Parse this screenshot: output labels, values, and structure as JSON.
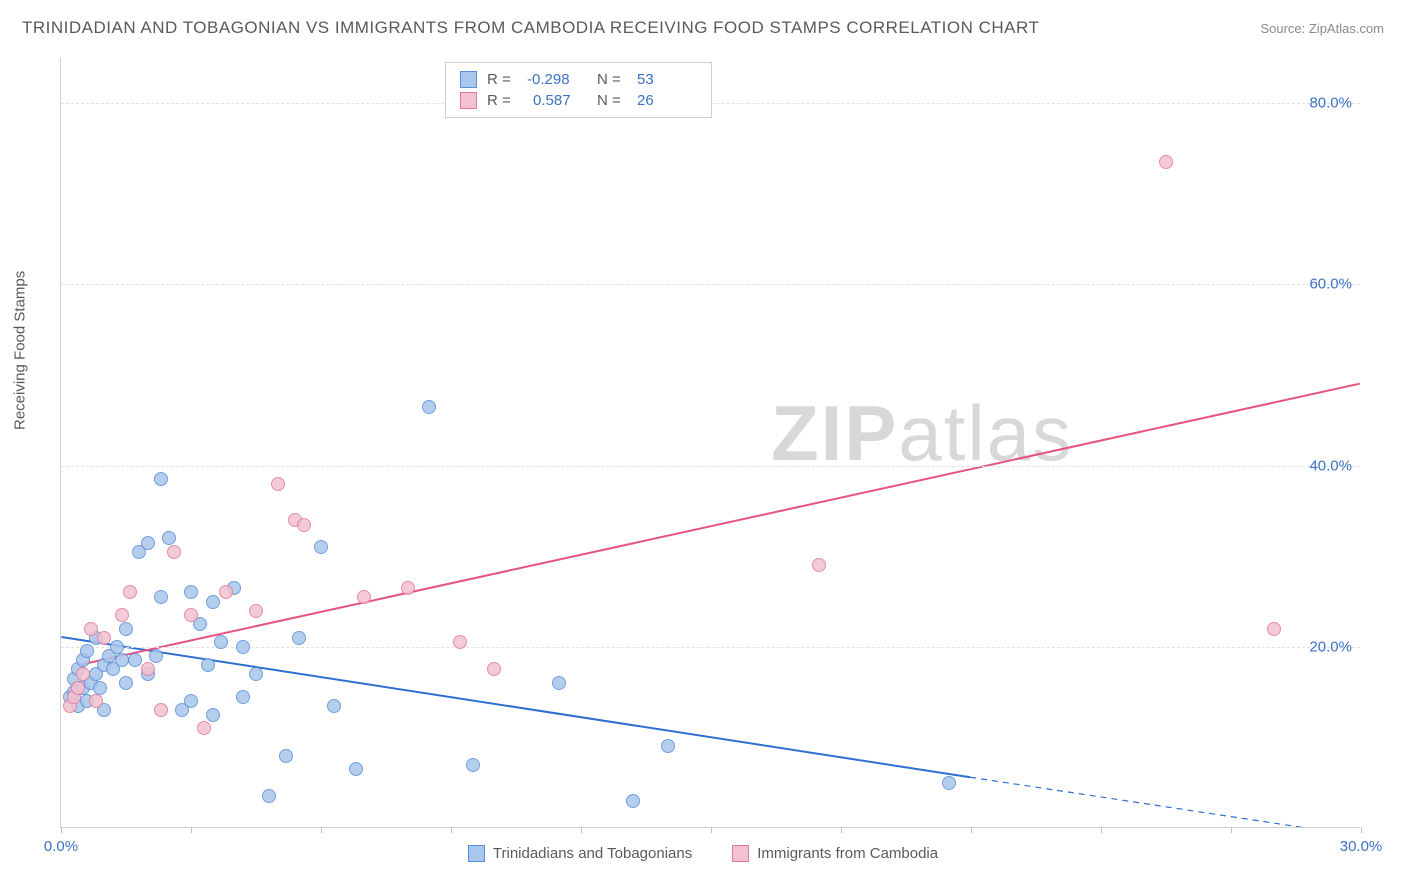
{
  "title": "TRINIDADIAN AND TOBAGONIAN VS IMMIGRANTS FROM CAMBODIA RECEIVING FOOD STAMPS CORRELATION CHART",
  "source_label": "Source: ZipAtlas.com",
  "ylabel": "Receiving Food Stamps",
  "watermark_bold": "ZIP",
  "watermark_rest": "atlas",
  "chart": {
    "type": "scatter",
    "xlim": [
      0,
      30
    ],
    "ylim": [
      0,
      85
    ],
    "x_ticks": [
      0,
      3,
      6,
      9,
      12,
      15,
      18,
      21,
      24,
      27,
      30
    ],
    "x_tick_labels": {
      "0": "0.0%",
      "30": "30.0%"
    },
    "y_gridlines": [
      20,
      40,
      60,
      80
    ],
    "y_tick_labels": {
      "20": "20.0%",
      "40": "40.0%",
      "60": "60.0%",
      "80": "80.0%"
    },
    "background_color": "#ffffff",
    "grid_color": "#e2e2e2",
    "axis_color": "#d0d0d0",
    "tick_label_color": "#3b72c4",
    "tick_label_fontsize": 15,
    "point_radius": 7,
    "point_border_width": 1.2,
    "point_fill_opacity": 0.35,
    "series": [
      {
        "name": "Trinidadians and Tobagonians",
        "color_fill": "#a9c6ec",
        "color_border": "#5b8fd6",
        "trend_color": "#2f6fd0",
        "trend_width": 2,
        "R": "-0.298",
        "N": "53",
        "trend": {
          "x1": 0,
          "y1": 21.0,
          "x2": 21.0,
          "y2": 5.5,
          "dash_x2": 30,
          "dash_y2": -1.0
        },
        "points": [
          [
            0.2,
            14.5
          ],
          [
            0.3,
            15.0
          ],
          [
            0.3,
            16.5
          ],
          [
            0.4,
            13.5
          ],
          [
            0.4,
            17.5
          ],
          [
            0.5,
            15.5
          ],
          [
            0.5,
            18.5
          ],
          [
            0.6,
            14.0
          ],
          [
            0.6,
            19.5
          ],
          [
            0.7,
            16.0
          ],
          [
            0.8,
            17.0
          ],
          [
            0.8,
            21.0
          ],
          [
            0.9,
            15.5
          ],
          [
            1.0,
            18.0
          ],
          [
            1.0,
            13.0
          ],
          [
            1.1,
            19.0
          ],
          [
            1.2,
            17.5
          ],
          [
            1.3,
            20.0
          ],
          [
            1.4,
            18.5
          ],
          [
            1.5,
            16.0
          ],
          [
            1.5,
            22.0
          ],
          [
            1.7,
            18.5
          ],
          [
            1.8,
            30.5
          ],
          [
            2.0,
            17.0
          ],
          [
            2.0,
            31.5
          ],
          [
            2.2,
            19.0
          ],
          [
            2.3,
            25.5
          ],
          [
            2.5,
            32.0
          ],
          [
            2.3,
            38.5
          ],
          [
            2.8,
            13.0
          ],
          [
            3.0,
            26.0
          ],
          [
            3.0,
            14.0
          ],
          [
            3.2,
            22.5
          ],
          [
            3.4,
            18.0
          ],
          [
            3.5,
            25.0
          ],
          [
            3.5,
            12.5
          ],
          [
            3.7,
            20.5
          ],
          [
            4.0,
            26.5
          ],
          [
            4.2,
            14.5
          ],
          [
            4.2,
            20.0
          ],
          [
            4.5,
            17.0
          ],
          [
            4.8,
            3.5
          ],
          [
            5.2,
            8.0
          ],
          [
            5.5,
            21.0
          ],
          [
            6.0,
            31.0
          ],
          [
            6.3,
            13.5
          ],
          [
            6.8,
            6.5
          ],
          [
            8.5,
            46.5
          ],
          [
            9.5,
            7.0
          ],
          [
            11.5,
            16.0
          ],
          [
            13.2,
            3.0
          ],
          [
            14.0,
            9.0
          ],
          [
            20.5,
            5.0
          ]
        ]
      },
      {
        "name": "Immigrants from Cambodia",
        "color_fill": "#f3c1cf",
        "color_border": "#e07a9a",
        "trend_color": "#e5537e",
        "trend_width": 2,
        "R": "0.587",
        "N": "26",
        "trend": {
          "x1": 0.5,
          "y1": 18.0,
          "x2": 30,
          "y2": 49.0
        },
        "points": [
          [
            0.2,
            13.5
          ],
          [
            0.3,
            14.5
          ],
          [
            0.4,
            15.5
          ],
          [
            0.5,
            17.0
          ],
          [
            0.7,
            22.0
          ],
          [
            0.8,
            14.0
          ],
          [
            1.0,
            21.0
          ],
          [
            1.4,
            23.5
          ],
          [
            1.6,
            26.0
          ],
          [
            2.0,
            17.5
          ],
          [
            2.3,
            13.0
          ],
          [
            2.6,
            30.5
          ],
          [
            3.0,
            23.5
          ],
          [
            3.3,
            11.0
          ],
          [
            3.8,
            26.0
          ],
          [
            4.5,
            24.0
          ],
          [
            5.0,
            38.0
          ],
          [
            5.4,
            34.0
          ],
          [
            5.6,
            33.5
          ],
          [
            7.0,
            25.5
          ],
          [
            8.0,
            26.5
          ],
          [
            9.2,
            20.5
          ],
          [
            10.0,
            17.5
          ],
          [
            17.5,
            29.0
          ],
          [
            25.5,
            73.5
          ],
          [
            28.0,
            22.0
          ]
        ]
      }
    ]
  },
  "legend": {
    "series1_label": "Trinidadians and Tobagonians",
    "series2_label": "Immigrants from Cambodia"
  }
}
